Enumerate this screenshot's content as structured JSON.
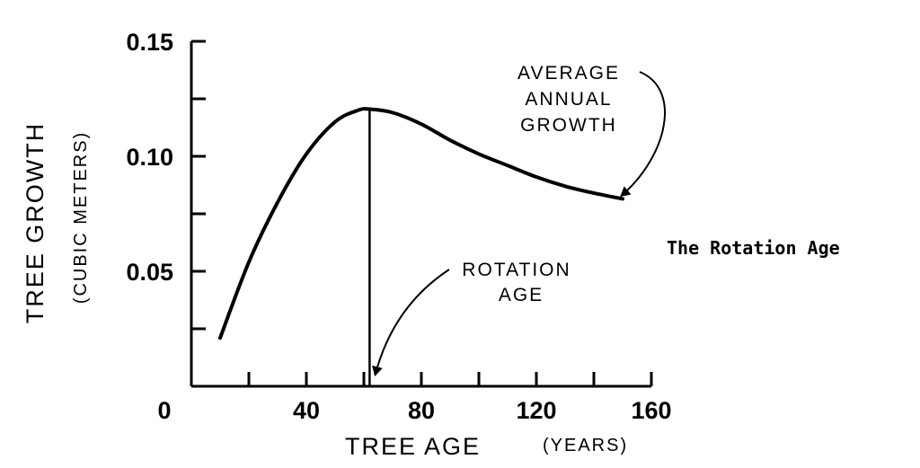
{
  "chart_data": {
    "type": "line",
    "title": "The Rotation Age",
    "xlabel": "TREE AGE",
    "xunit": "(YEARS)",
    "ylabel": "TREE GROWTH",
    "yunit": "(CUBIC METERS)",
    "xlim": [
      0,
      160
    ],
    "ylim": [
      0,
      0.15
    ],
    "xticks": [
      0,
      40,
      80,
      120,
      160
    ],
    "xtick_labels": [
      "0",
      "40",
      "80",
      "120",
      "160"
    ],
    "xminor_ticks": [
      20,
      60,
      100,
      140
    ],
    "yticks": [
      0.05,
      0.1,
      0.15
    ],
    "ytick_labels": [
      "0.05",
      "0.10",
      "0.15"
    ],
    "yminor_ticks": [
      0.025,
      0.075,
      0.125
    ],
    "grid": false,
    "series": [
      {
        "name": "AVERAGE ANNUAL GROWTH",
        "x": [
          10,
          20,
          30,
          40,
          50,
          58,
          62,
          70,
          80,
          90,
          100,
          110,
          120,
          130,
          140,
          150
        ],
        "y": [
          0.021,
          0.054,
          0.08,
          0.101,
          0.115,
          0.12,
          0.1205,
          0.119,
          0.114,
          0.107,
          0.101,
          0.096,
          0.091,
          0.087,
          0.084,
          0.0815
        ]
      }
    ],
    "rotation_age": 62,
    "annotations": [
      {
        "text": [
          "AVERAGE",
          "ANNUAL",
          "GROWTH"
        ],
        "points_to_x": 150,
        "points_to_y": 0.0815
      },
      {
        "text": [
          "ROTATION",
          "AGE"
        ],
        "points_to_x": 62,
        "points_to_y": 0
      }
    ]
  }
}
